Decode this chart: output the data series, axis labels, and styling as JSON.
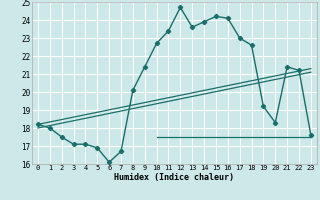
{
  "xlabel": "Humidex (Indice chaleur)",
  "xlim": [
    -0.5,
    23.5
  ],
  "ylim": [
    16,
    25
  ],
  "xticks": [
    0,
    1,
    2,
    3,
    4,
    5,
    6,
    7,
    8,
    9,
    10,
    11,
    12,
    13,
    14,
    15,
    16,
    17,
    18,
    19,
    20,
    21,
    22,
    23
  ],
  "yticks": [
    16,
    17,
    18,
    19,
    20,
    21,
    22,
    23,
    24,
    25
  ],
  "bg_color": "#cce8e8",
  "grid_color": "#ffffff",
  "line_color": "#1a6e6a",
  "line1_x": [
    0,
    1,
    2,
    3,
    4,
    5,
    6,
    7,
    8,
    9,
    10,
    11,
    12,
    13,
    14,
    15,
    16,
    17,
    18,
    19,
    20,
    21,
    22,
    23
  ],
  "line1_y": [
    18.2,
    18.0,
    17.5,
    17.1,
    17.1,
    16.9,
    16.1,
    16.7,
    20.1,
    21.4,
    22.7,
    23.4,
    24.7,
    23.6,
    23.9,
    24.2,
    24.1,
    23.0,
    22.6,
    19.2,
    18.3,
    21.4,
    21.2,
    17.6
  ],
  "line2_x": [
    0,
    23
  ],
  "line2_y": [
    18.2,
    21.3
  ],
  "line3_x": [
    0,
    23
  ],
  "line3_y": [
    18.0,
    21.1
  ],
  "line4_x": [
    10,
    23
  ],
  "line4_y": [
    17.5,
    17.5
  ]
}
